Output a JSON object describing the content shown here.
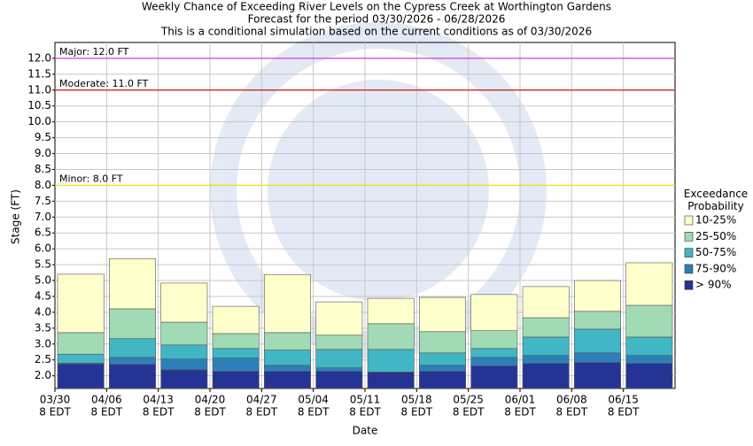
{
  "chart_data": {
    "type": "range_bar",
    "title": "Weekly Chance of Exceeding River Levels on the Cypress Creek at Worthington Gardens",
    "subtitle": "Forecast for the period 03/30/2026 - 06/28/2026",
    "note": "This is a conditional simulation based on the current conditions as of 03/30/2026",
    "x_label": "Date",
    "y_label": "Stage (FT)",
    "categories": [
      "03/30",
      "04/06",
      "04/13",
      "04/20",
      "04/27",
      "05/04",
      "05/11",
      "05/18",
      "05/25",
      "06/01",
      "06/08",
      "06/15"
    ],
    "x_tick_sublabel": "8 EDT",
    "legend_title": "Exceedance Probability",
    "series": [
      {
        "name": "> 90%",
        "color": "#253494",
        "values": [
          2.37,
          2.36,
          2.19,
          2.14,
          2.14,
          2.14,
          2.11,
          2.14,
          2.31,
          2.39,
          2.42,
          2.39
        ]
      },
      {
        "name": "75-90%",
        "color": "#2c7fb8",
        "values": [
          2.4,
          2.58,
          2.53,
          2.56,
          2.33,
          2.25,
          2.12,
          2.33,
          2.58,
          2.64,
          2.72,
          2.64
        ]
      },
      {
        "name": "50-75%",
        "color": "#41b6c4",
        "values": [
          2.68,
          3.17,
          2.97,
          2.86,
          2.81,
          2.83,
          2.83,
          2.72,
          2.86,
          3.22,
          3.47,
          3.22
        ]
      },
      {
        "name": "25-50%",
        "color": "#a1dab4",
        "values": [
          3.36,
          4.11,
          3.69,
          3.33,
          3.36,
          3.28,
          3.64,
          3.39,
          3.42,
          3.83,
          4.03,
          4.22
        ]
      },
      {
        "name": "10-25%",
        "color": "#ffffcc",
        "values": [
          5.2,
          5.69,
          4.92,
          4.19,
          5.19,
          4.33,
          4.44,
          4.47,
          4.56,
          4.81,
          5.0,
          5.56
        ]
      }
    ],
    "thresholds": [
      {
        "label": "Major: 12.0 FT",
        "value": 12,
        "color": "#cc33cc"
      },
      {
        "label": "Moderate: 11.0 FT",
        "value": 11,
        "color": "#cc0000"
      },
      {
        "label": "Minor: 8.0 FT",
        "value": 8,
        "color": "#e6e600"
      }
    ],
    "ylim": [
      1.6,
      12.5
    ],
    "yticks": [
      {
        "value": 2,
        "label": "2.0"
      },
      2.5,
      {
        "value": 3,
        "label": "3.0"
      },
      3.5,
      {
        "value": 4,
        "label": "4.0"
      },
      4.5,
      {
        "value": 5,
        "label": "5.0"
      },
      5.5,
      {
        "value": 6,
        "label": "6.0"
      },
      6.5,
      {
        "value": 7,
        "label": "7.0"
      },
      7.5,
      {
        "value": 8,
        "label": "8.0"
      },
      8.5,
      {
        "value": 9,
        "label": "9.0"
      },
      9.5,
      {
        "value": 10,
        "label": "10.0"
      },
      10.5,
      {
        "value": 11,
        "label": "11.0"
      },
      11.5,
      {
        "value": 12,
        "label": "12.0"
      }
    ],
    "grid": true
  }
}
